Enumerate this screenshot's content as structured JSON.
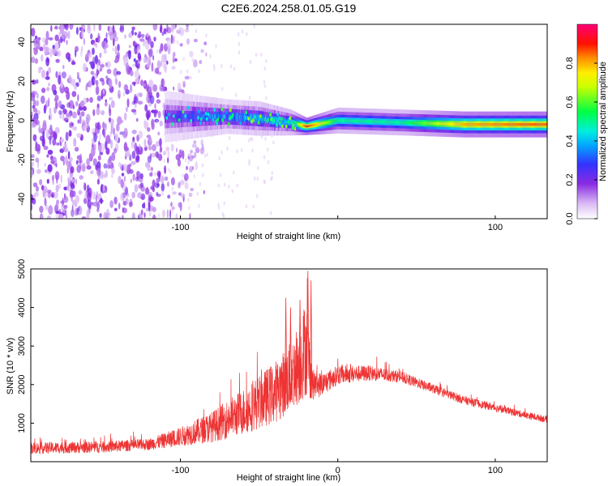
{
  "title": "C2E6.2024.258.01.05.G19",
  "chart_data": [
    {
      "type": "heatmap",
      "xlabel": "Height of straight line (km)",
      "ylabel": "Frequency (Hz)",
      "xlim": [
        -195,
        133
      ],
      "ylim": [
        -50,
        49
      ],
      "xticks": [
        -100,
        0,
        100
      ],
      "xtick_labels": [
        "-100",
        "",
        "100"
      ],
      "yticks": [
        -40,
        -20,
        0,
        20,
        40
      ],
      "ytick_labels": [
        "-40",
        "-20",
        "0",
        "20",
        "40"
      ],
      "grid": false,
      "colorbar": {
        "label": "Normalized spectral amplitude",
        "range": [
          0,
          1
        ],
        "ticks": [
          0.0,
          0.2,
          0.4,
          0.6,
          0.8
        ],
        "tick_labels": [
          "0.0",
          "0.2",
          "0.4",
          "0.6",
          "0.8"
        ],
        "colormap": "rainbow (white-purple-blue-cyan-green-yellow-red-magenta)"
      },
      "features": {
        "noise_region_x": [
          -195,
          -115
        ],
        "fade_region_x": [
          -115,
          -80
        ],
        "band_center_hz": 0,
        "band_samples": [
          {
            "x": -110,
            "center": 2,
            "half_width": 6,
            "amp": 0.22
          },
          {
            "x": -90,
            "center": 2,
            "half_width": 5,
            "amp": 0.3
          },
          {
            "x": -70,
            "center": 2,
            "half_width": 4,
            "amp": 0.35
          },
          {
            "x": -50,
            "center": 1,
            "half_width": 4,
            "amp": 0.4
          },
          {
            "x": -30,
            "center": -1,
            "half_width": 3,
            "amp": 0.45
          },
          {
            "x": -20,
            "center": -3,
            "half_width": 2,
            "amp": 0.9
          },
          {
            "x": 0,
            "center": 0,
            "half_width": 3,
            "amp": 0.5
          },
          {
            "x": 40,
            "center": -1,
            "half_width": 3,
            "amp": 0.5
          },
          {
            "x": 80,
            "center": -2,
            "half_width": 3,
            "amp": 0.8
          },
          {
            "x": 120,
            "center": -2,
            "half_width": 3,
            "amp": 0.85
          }
        ]
      }
    },
    {
      "type": "line",
      "xlabel": "Height of straight line (km)",
      "ylabel": "SNR (10 * v/v)",
      "xlim": [
        -195,
        133
      ],
      "ylim": [
        0,
        5000
      ],
      "xticks": [
        -100,
        0,
        100
      ],
      "xtick_labels": [
        "-100",
        "0",
        "100"
      ],
      "yticks": [
        1000,
        2000,
        3000,
        4000,
        5000
      ],
      "ytick_labels": [
        "1000",
        "2000",
        "3000",
        "4000",
        "5000"
      ],
      "grid": false,
      "series": [
        {
          "color": "#ee3333",
          "envelope_x": [
            -195,
            -150,
            -120,
            -100,
            -80,
            -60,
            -40,
            -30,
            -24,
            -20,
            -16,
            -10,
            0,
            20,
            40,
            60,
            80,
            100,
            120,
            133
          ],
          "envelope_y": [
            350,
            380,
            450,
            650,
            900,
            1300,
            1800,
            2200,
            2600,
            3000,
            2000,
            2000,
            2250,
            2300,
            2200,
            1900,
            1600,
            1400,
            1200,
            1100
          ],
          "spread_y": [
            150,
            150,
            150,
            250,
            400,
            600,
            800,
            900,
            1100,
            1300,
            400,
            300,
            250,
            200,
            150,
            120,
            110,
            100,
            90,
            90
          ],
          "peaks": [
            {
              "x": -33,
              "y": 4250
            },
            {
              "x": -30,
              "y": 4000
            },
            {
              "x": -24,
              "y": 4200
            },
            {
              "x": -19,
              "y": 4950
            },
            {
              "x": -17,
              "y": 4700
            }
          ]
        }
      ]
    }
  ]
}
